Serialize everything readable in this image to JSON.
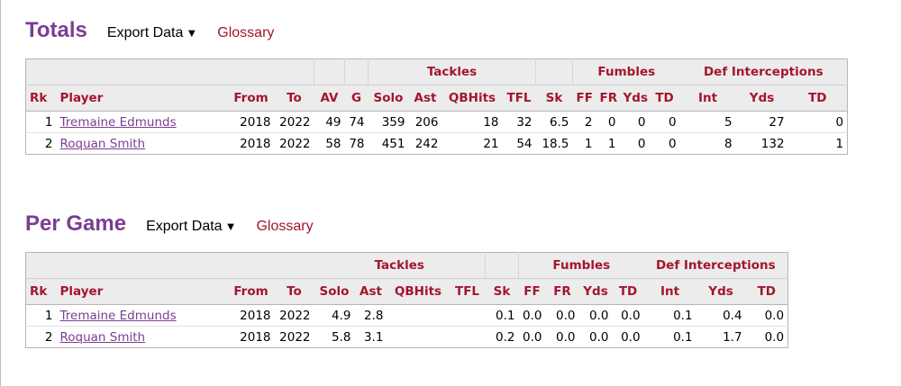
{
  "totals": {
    "title": "Totals",
    "export_label": "Export Data",
    "glossary_label": "Glossary",
    "over_headers": {
      "tackles": "Tackles",
      "fumbles": "Fumbles",
      "def_int": "Def Interceptions"
    },
    "columns": [
      "Rk",
      "Player",
      "From",
      "To",
      "AV",
      "G",
      "Solo",
      "Ast",
      "QBHits",
      "TFL",
      "Sk",
      "FF",
      "FR",
      "Yds",
      "TD",
      "Int",
      "Yds",
      "TD"
    ],
    "rows": [
      [
        "1",
        "Tremaine Edmunds",
        "2018",
        "2022",
        "49",
        "74",
        "359",
        "206",
        "18",
        "32",
        "6.5",
        "2",
        "0",
        "0",
        "0",
        "5",
        "27",
        "0"
      ],
      [
        "2",
        "Roquan Smith",
        "2018",
        "2022",
        "58",
        "78",
        "451",
        "242",
        "21",
        "54",
        "18.5",
        "1",
        "1",
        "0",
        "0",
        "8",
        "132",
        "1"
      ]
    ]
  },
  "per_game": {
    "title": "Per Game",
    "export_label": "Export Data",
    "glossary_label": "Glossary",
    "over_headers": {
      "tackles": "Tackles",
      "fumbles": "Fumbles",
      "def_int": "Def Interceptions"
    },
    "columns": [
      "Rk",
      "Player",
      "From",
      "To",
      "Solo",
      "Ast",
      "QBHits",
      "TFL",
      "Sk",
      "FF",
      "FR",
      "Yds",
      "TD",
      "Int",
      "Yds",
      "TD"
    ],
    "rows": [
      [
        "1",
        "Tremaine Edmunds",
        "2018",
        "2022",
        "4.9",
        "2.8",
        "",
        "",
        "0.1",
        "0.0",
        "0.0",
        "0.0",
        "0.0",
        "0.1",
        "0.4",
        "0.0"
      ],
      [
        "2",
        "Roquan Smith",
        "2018",
        "2022",
        "5.8",
        "3.1",
        "",
        "",
        "0.2",
        "0.0",
        "0.0",
        "0.0",
        "0.0",
        "0.1",
        "1.7",
        "0.0"
      ]
    ]
  }
}
